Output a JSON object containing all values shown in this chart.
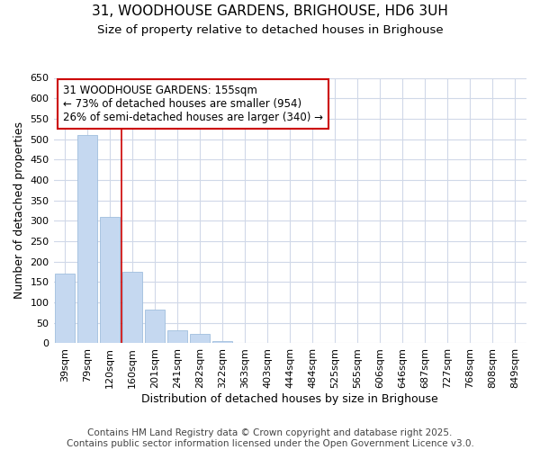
{
  "title_line1": "31, WOODHOUSE GARDENS, BRIGHOUSE, HD6 3UH",
  "title_line2": "Size of property relative to detached houses in Brighouse",
  "xlabel": "Distribution of detached houses by size in Brighouse",
  "ylabel": "Number of detached properties",
  "bar_color": "#c5d8f0",
  "bar_edge_color": "#a0bedd",
  "annotation_line_color": "#cc0000",
  "categories": [
    "39sqm",
    "79sqm",
    "120sqm",
    "160sqm",
    "201sqm",
    "241sqm",
    "282sqm",
    "322sqm",
    "363sqm",
    "403sqm",
    "444sqm",
    "484sqm",
    "525sqm",
    "565sqm",
    "606sqm",
    "646sqm",
    "687sqm",
    "727sqm",
    "768sqm",
    "808sqm",
    "849sqm"
  ],
  "values": [
    170,
    510,
    310,
    175,
    82,
    32,
    22,
    5,
    2,
    0,
    0,
    0,
    0,
    0,
    0,
    0,
    0,
    0,
    0,
    2,
    0
  ],
  "ylim": [
    0,
    650
  ],
  "yticks": [
    0,
    50,
    100,
    150,
    200,
    250,
    300,
    350,
    400,
    450,
    500,
    550,
    600,
    650
  ],
  "annotation_title": "31 WOODHOUSE GARDENS: 155sqm",
  "annotation_line1": "← 73% of detached houses are smaller (954)",
  "annotation_line2": "26% of semi-detached houses are larger (340) →",
  "footer_line1": "Contains HM Land Registry data © Crown copyright and database right 2025.",
  "footer_line2": "Contains public sector information licensed under the Open Government Licence v3.0.",
  "background_color": "#ffffff",
  "plot_bg_color": "#ffffff",
  "grid_color": "#d0d8e8",
  "title_fontsize": 11,
  "subtitle_fontsize": 9.5,
  "axis_label_fontsize": 9,
  "tick_fontsize": 8,
  "annotation_fontsize": 8.5,
  "footer_fontsize": 7.5
}
